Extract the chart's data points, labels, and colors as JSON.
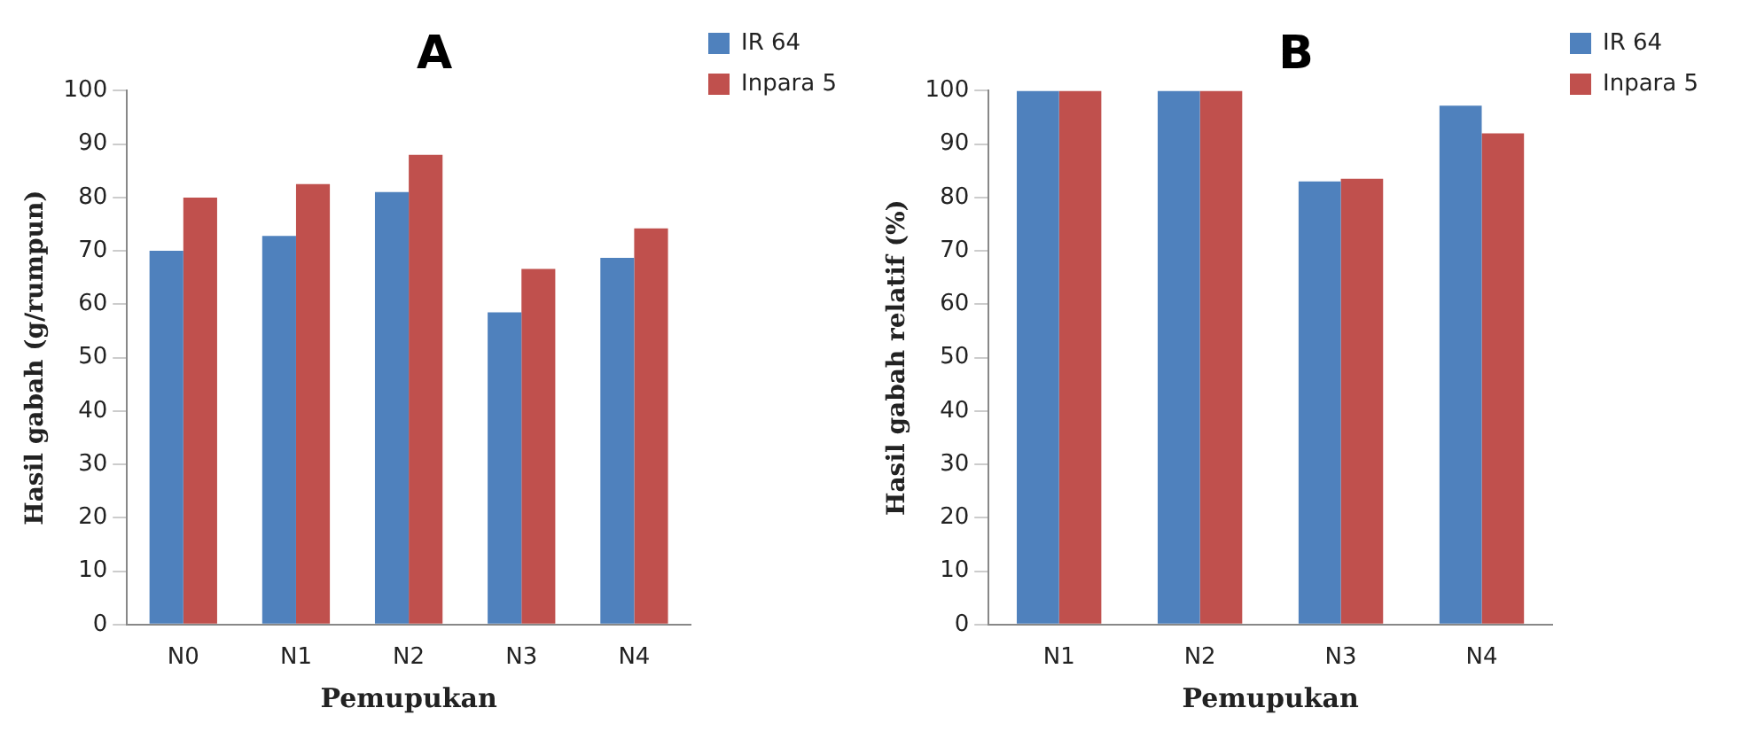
{
  "chart_data": [
    {
      "type": "bar",
      "title": "A",
      "xlabel": "Pemupukan",
      "ylabel": "Hasil gabah (g/rumpun)",
      "categories": [
        "N0",
        "N1",
        "N2",
        "N3",
        "N4"
      ],
      "series": [
        {
          "name": "IR 64",
          "color": "#4f81bd",
          "values": [
            70,
            72.8,
            81,
            58.5,
            68.7
          ]
        },
        {
          "name": "Inpara 5",
          "color": "#c0504d",
          "values": [
            80,
            82.5,
            88,
            66.6,
            74.2
          ]
        }
      ],
      "ylim": [
        0,
        100
      ],
      "yticks": [
        0,
        10,
        20,
        30,
        40,
        50,
        60,
        70,
        80,
        90,
        100
      ],
      "grid": false,
      "legend": "top right"
    },
    {
      "type": "bar",
      "title": "B",
      "xlabel": "Pemupukan",
      "ylabel": "Hasil gabah relatif (%)",
      "categories": [
        "N1",
        "N2",
        "N3",
        "N4"
      ],
      "series": [
        {
          "name": "IR 64",
          "color": "#4f81bd",
          "values": [
            100,
            100,
            83,
            97.2
          ]
        },
        {
          "name": "Inpara 5",
          "color": "#c0504d",
          "values": [
            100,
            100,
            83.5,
            92
          ]
        }
      ],
      "ylim": [
        0,
        100
      ],
      "yticks": [
        0,
        10,
        20,
        30,
        40,
        50,
        60,
        70,
        80,
        90,
        100
      ],
      "grid": false,
      "legend": "top right"
    }
  ]
}
